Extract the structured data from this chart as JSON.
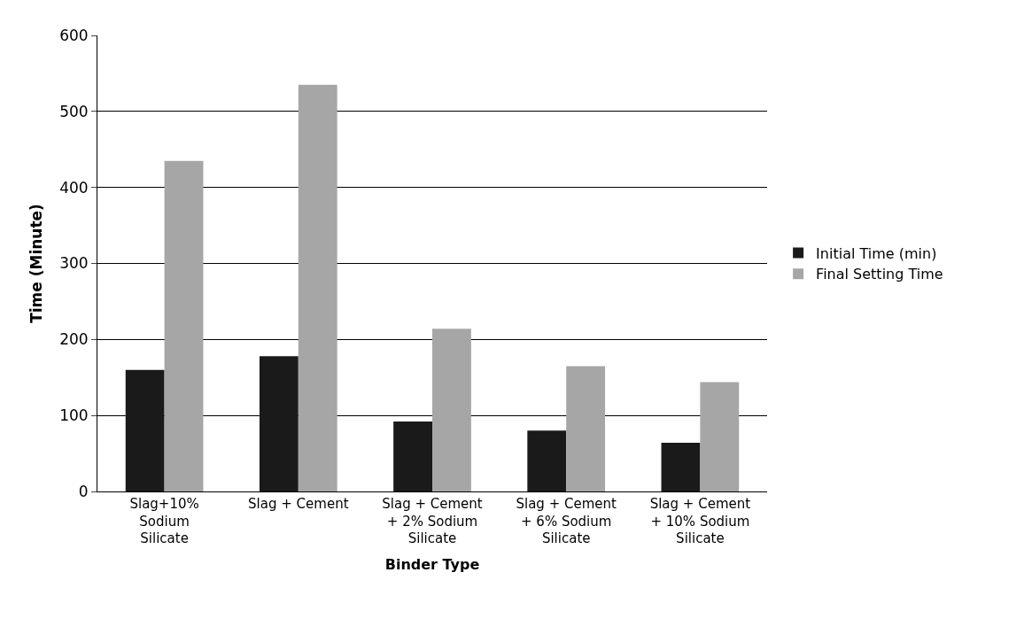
{
  "chart_data": {
    "type": "bar",
    "xlabel": "Binder Type",
    "ylabel": "Time (Minute)",
    "categories": [
      "Slag+10% Sodium Silicate",
      "Slag + Cement",
      "Slag + Cement + 2% Sodium Silicate",
      "Slag + Cement + 6% Sodium Silicate",
      "Slag + Cement + 10% Sodium Silicate"
    ],
    "series": [
      {
        "name": "Initial Time (min)",
        "color": "#1a1a1a",
        "values": [
          160,
          178,
          92,
          80,
          64
        ]
      },
      {
        "name": "Final Setting Time",
        "color": "#a6a6a6",
        "values": [
          435,
          535,
          214,
          165,
          144
        ]
      }
    ],
    "ylim": [
      0,
      600
    ],
    "yticks": [
      0,
      100,
      200,
      300,
      400,
      500,
      600
    ],
    "grid": "y",
    "legend": "right"
  }
}
